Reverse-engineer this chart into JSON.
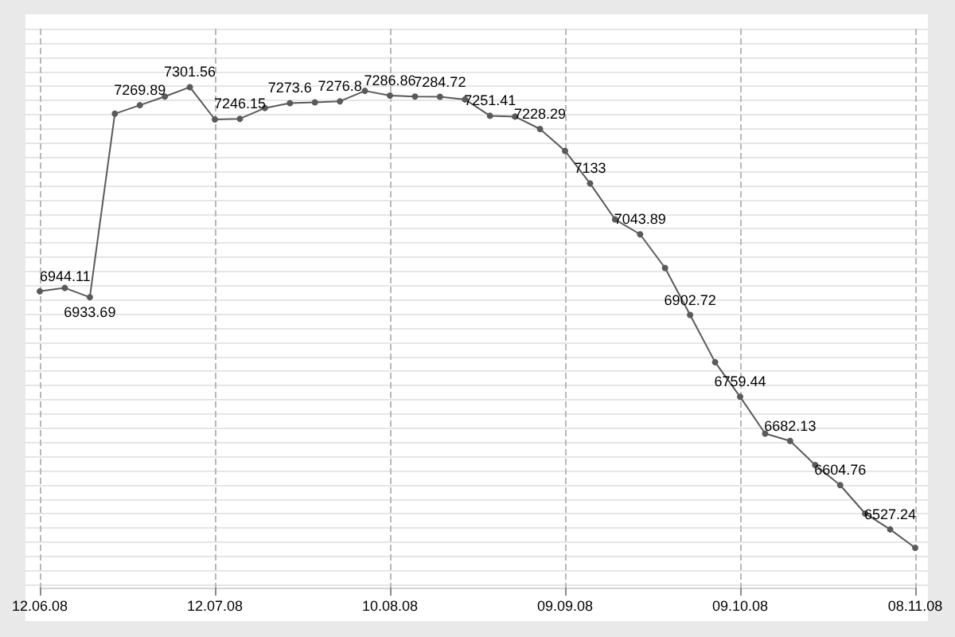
{
  "chart_data": {
    "type": "line",
    "categories": [
      "12.06.08",
      null,
      null,
      null,
      null,
      null,
      null,
      "12.07.08",
      null,
      null,
      null,
      null,
      null,
      null,
      "10.08.08",
      null,
      null,
      null,
      null,
      null,
      null,
      "09.09.08",
      null,
      null,
      null,
      null,
      null,
      null,
      "09.10.08",
      null,
      null,
      null,
      null,
      null,
      null,
      "08.11.08"
    ],
    "series": [
      {
        "color": "#5a5a5a",
        "values": [
          6944.11,
          6950,
          6933.69,
          7255,
          7269.89,
          7285,
          7301.56,
          7245,
          7246.15,
          7265,
          7273.6,
          7275,
          7276.8,
          7295,
          7286.86,
          7285,
          7284.72,
          7280,
          7251.41,
          7250,
          7228.29,
          7190,
          7133,
          7070,
          7043.89,
          6985,
          6902.72,
          6820,
          6759.44,
          6695,
          6682.13,
          6640,
          6604.76,
          6555,
          6527.24,
          6495
        ],
        "value_labels": [
          "6944.11",
          null,
          "6933.69",
          null,
          "7269.89",
          null,
          "7301.56",
          null,
          "7246.15",
          null,
          "7273.6",
          null,
          "7276.8",
          null,
          "7286.86",
          null,
          "7284.72",
          null,
          "7251.41",
          null,
          "7228.29",
          null,
          "7133",
          null,
          "7043.89",
          null,
          "6902.72",
          null,
          "6759.44",
          null,
          "6682.13",
          null,
          "6604.76",
          null,
          "6527.24",
          null
        ]
      }
    ],
    "grid": "x",
    "marker": "circle",
    "line_style": "solid",
    "tick_labels": "x"
  }
}
